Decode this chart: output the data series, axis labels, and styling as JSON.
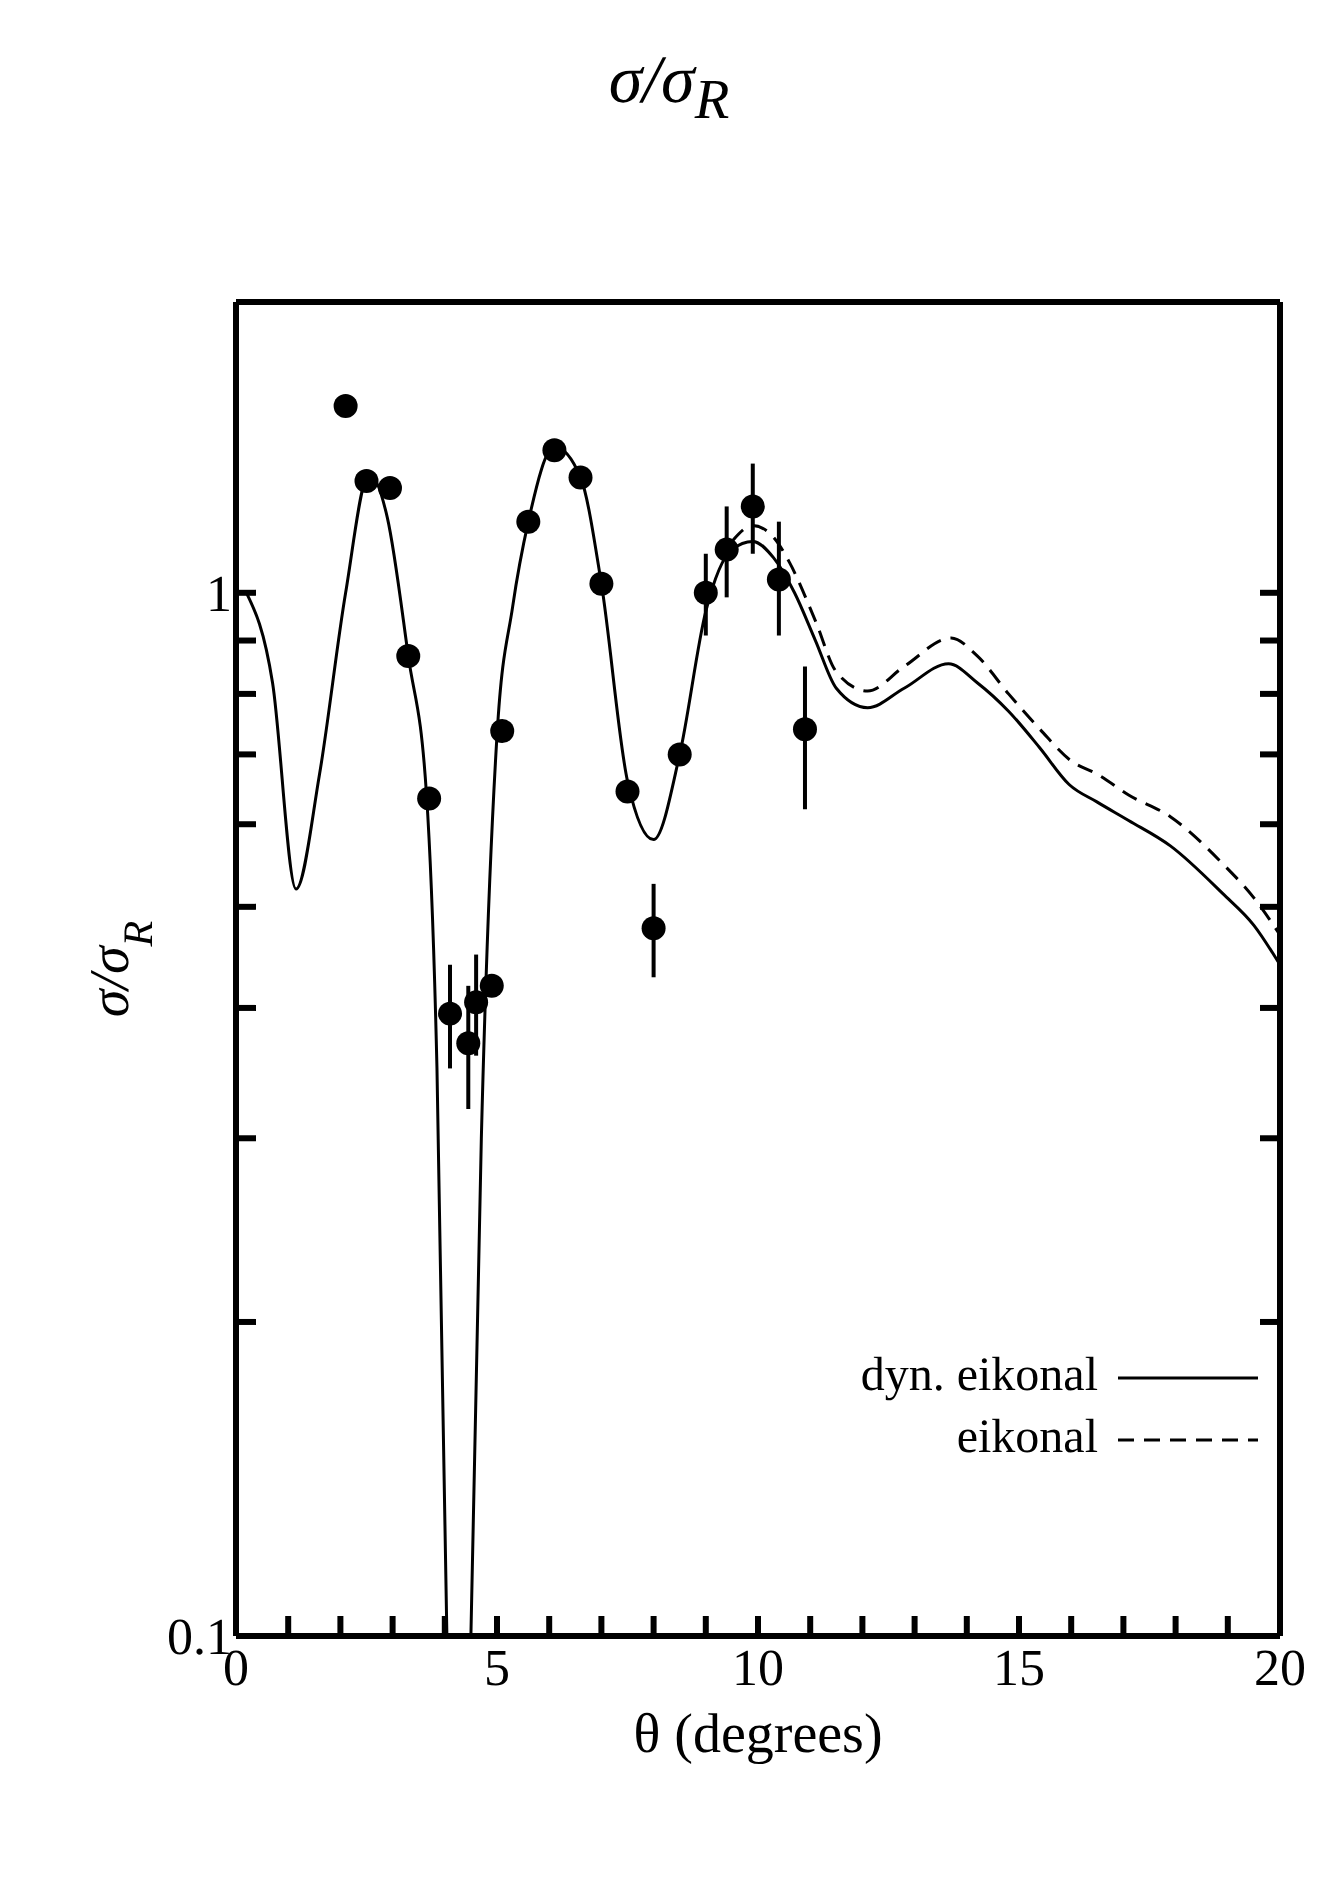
{
  "chart_data": {
    "type": "line",
    "title": "σ/σ$_{R}$",
    "xlabel": "θ (degrees)",
    "ylabel": "σ/σ$_{R}$",
    "log": "y",
    "xlim": [
      0,
      20
    ],
    "xticks": [
      0,
      {
        "value": 1,
        "label": null
      },
      {
        "value": 2,
        "label": null
      },
      {
        "value": 3,
        "label": null
      },
      {
        "value": 4,
        "label": null
      },
      5,
      {
        "value": 6,
        "label": null
      },
      {
        "value": 7,
        "label": null
      },
      {
        "value": 8,
        "label": null
      },
      {
        "value": 9,
        "label": null
      },
      10,
      {
        "value": 11,
        "label": null
      },
      {
        "value": 12,
        "label": null
      },
      {
        "value": 13,
        "label": null
      },
      {
        "value": 14,
        "label": null
      },
      15,
      {
        "value": 16,
        "label": null
      },
      {
        "value": 17,
        "label": null
      },
      {
        "value": 18,
        "label": null
      },
      {
        "value": 19,
        "label": null
      },
      20
    ],
    "ylim": [
      0.1,
      1.9
    ],
    "yticks": [
      0.1,
      {
        "value": 0.2,
        "label": null
      },
      {
        "value": 0.3,
        "label": null
      },
      {
        "value": 0.4,
        "label": null
      },
      {
        "value": 0.5,
        "label": null
      },
      {
        "value": 0.6,
        "label": null
      },
      {
        "value": 0.7,
        "label": null
      },
      {
        "value": 0.8,
        "label": null
      },
      {
        "value": 0.9,
        "label": null
      },
      1
    ],
    "grid": false,
    "legend": "bottom right",
    "series": [
      {
        "type": "scatter",
        "color": "#000000",
        "marker": "circle",
        "x": [
          2.1,
          2.5,
          2.95,
          3.3,
          3.7,
          4.1,
          4.45,
          4.6,
          4.9,
          5.1,
          5.6,
          6.1,
          6.6,
          7.0,
          7.5,
          8.0,
          8.5,
          9.0,
          9.4,
          9.9,
          10.4,
          10.9
        ],
        "values": [
          1.51,
          1.28,
          1.26,
          0.87,
          0.635,
          0.395,
          0.37,
          0.405,
          0.42,
          0.737,
          1.17,
          1.37,
          1.29,
          1.02,
          0.645,
          0.477,
          0.7,
          1.0,
          1.1,
          1.21,
          1.03,
          0.74
        ],
        "errors": [
          null,
          null,
          null,
          null,
          null,
          [
            0.35,
            0.44
          ],
          [
            0.32,
            0.42
          ],
          [
            0.36,
            0.45
          ],
          null,
          null,
          null,
          null,
          null,
          null,
          null,
          [
            0.428,
            0.526
          ],
          null,
          [
            0.91,
            1.09
          ],
          [
            0.99,
            1.21
          ],
          [
            1.09,
            1.33
          ],
          [
            0.91,
            1.17
          ],
          [
            0.62,
            0.85
          ]
        ]
      },
      {
        "name": "dyn. eikonal",
        "color": "#000000",
        "line_style": "solid",
        "marker": "none",
        "x": [
          0.2,
          0.7,
          1.15,
          1.6,
          2.1,
          2.55,
          2.9,
          3.3,
          3.65,
          3.85,
          4.04,
          4.27,
          4.5,
          4.7,
          5.0,
          5.3,
          5.6,
          6.1,
          6.6,
          7.0,
          7.5,
          8.0,
          8.5,
          9.0,
          9.5,
          9.9,
          10.3,
          10.7,
          11.1,
          11.5,
          12.1,
          12.8,
          13.65,
          14.2,
          14.8,
          15.4,
          15.96,
          16.5,
          17.1,
          17.9,
          18.9,
          19.5,
          20
        ],
        "values": [
          1.0,
          0.82,
          0.52,
          0.67,
          1.0,
          1.3,
          1.18,
          0.87,
          0.64,
          0.35,
          0.1,
          null,
          0.1,
          0.3,
          0.73,
          0.97,
          1.17,
          1.38,
          1.29,
          1.02,
          0.66,
          0.58,
          0.7,
          0.96,
          1.1,
          1.12,
          1.08,
          1.0,
          0.9,
          0.81,
          0.776,
          0.81,
          0.855,
          0.82,
          0.77,
          0.71,
          0.655,
          0.63,
          0.605,
          0.572,
          0.515,
          0.48,
          0.44
        ]
      },
      {
        "name": "eikonal",
        "color": "#000000",
        "line_style": "dashed",
        "marker": "none",
        "x": [
          9.5,
          9.9,
          10.3,
          10.6,
          11.1,
          11.5,
          12.1,
          12.8,
          13.7,
          14.2,
          14.8,
          15.4,
          16.0,
          16.5,
          17.1,
          17.9,
          18.9,
          19.5,
          20
        ],
        "values": [
          1.12,
          1.16,
          1.13,
          1.07,
          0.94,
          0.84,
          0.805,
          0.85,
          0.905,
          0.87,
          0.8,
          0.74,
          0.69,
          0.67,
          0.64,
          0.61,
          0.55,
          0.51,
          0.47
        ]
      }
    ]
  }
}
